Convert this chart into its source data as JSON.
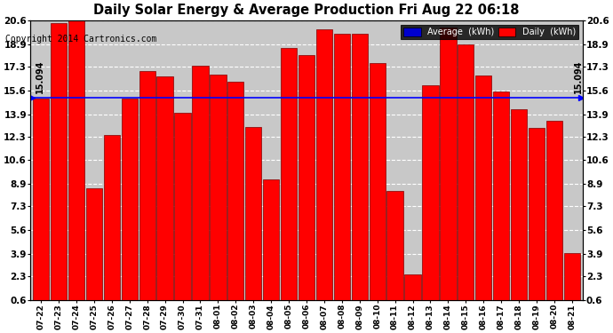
{
  "title": "Daily Solar Energy & Average Production Fri Aug 22 06:18",
  "copyright": "Copyright 2014 Cartronics.com",
  "average_label": "15.094",
  "average_value": 15.094,
  "bar_color": "#FF0000",
  "average_line_color": "#0000FF",
  "background_color": "#FFFFFF",
  "plot_bg_color": "#C8C8C8",
  "grid_color": "#FFFFFF",
  "categories": [
    "07-22",
    "07-23",
    "07-24",
    "07-25",
    "07-26",
    "07-27",
    "07-28",
    "07-29",
    "07-30",
    "07-31",
    "08-01",
    "08-02",
    "08-03",
    "08-04",
    "08-05",
    "08-06",
    "08-07",
    "08-08",
    "08-09",
    "08-10",
    "08-11",
    "08-12",
    "08-13",
    "08-14",
    "08-15",
    "08-16",
    "08-17",
    "08-18",
    "08-19",
    "08-20",
    "08-21"
  ],
  "values": [
    14.986,
    20.424,
    20.594,
    8.6,
    12.398,
    15.03,
    17.0,
    16.616,
    13.99,
    17.392,
    16.7,
    16.242,
    12.976,
    9.21,
    18.618,
    18.128,
    19.944,
    19.644,
    19.642,
    17.556,
    8.404,
    2.436,
    15.944,
    20.128,
    18.882,
    16.67,
    15.492,
    14.232,
    12.944,
    13.414,
    3.976
  ],
  "ylim_min": 0.6,
  "ylim_max": 20.6,
  "yticks": [
    0.6,
    2.3,
    3.9,
    5.6,
    7.3,
    8.9,
    10.6,
    12.3,
    13.9,
    15.6,
    17.3,
    18.9,
    20.6
  ],
  "legend_avg_color": "#0000CD",
  "legend_daily_color": "#FF0000",
  "legend_avg_text": "Average  (kWh)",
  "legend_daily_text": "Daily  (kWh)",
  "value_label_color": "#FF0000",
  "value_label_fontsize": 6.5,
  "bar_edge_color": "#800000"
}
